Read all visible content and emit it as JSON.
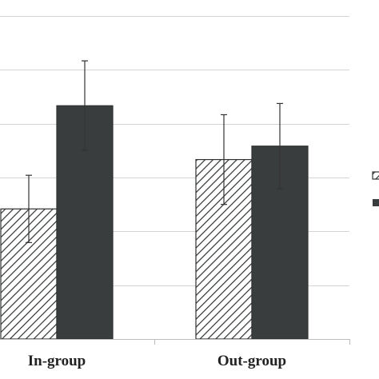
{
  "chart_data": {
    "type": "bar",
    "categories": [
      "In-group",
      "Out-group"
    ],
    "series": [
      {
        "pattern": "hatched",
        "color": "#3a3d3d",
        "values": [
          2.9,
          4.0
        ],
        "error": [
          0.75,
          1.0
        ]
      },
      {
        "pattern": "solid",
        "color": "#3a3d3d",
        "values": [
          5.2,
          4.3
        ],
        "error": [
          1.0,
          0.95
        ]
      }
    ],
    "ylim": [
      0,
      7.2
    ],
    "grid": true,
    "legend": "right"
  }
}
